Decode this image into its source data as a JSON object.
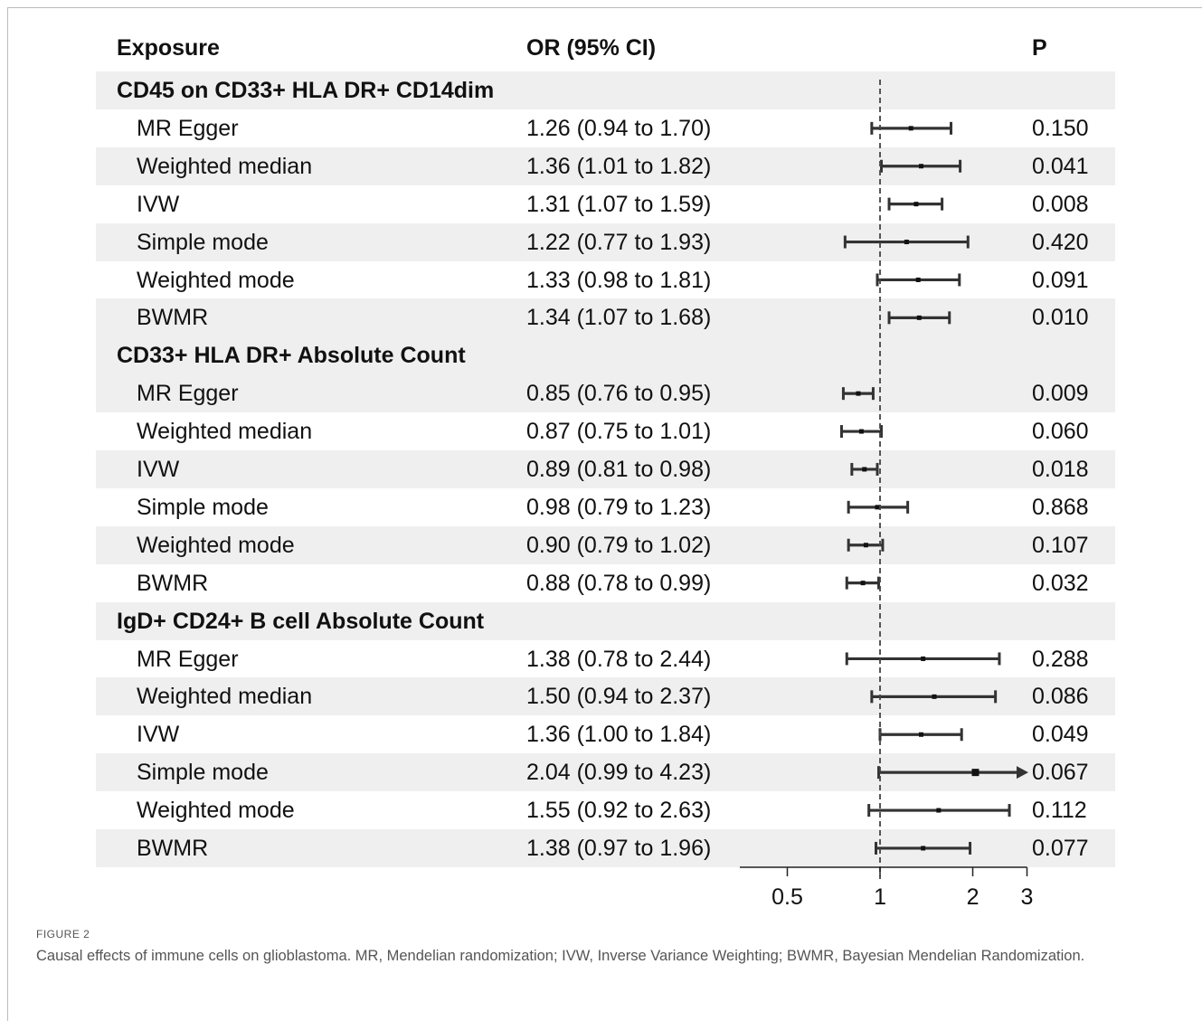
{
  "chart_data": {
    "type": "forest",
    "columns": {
      "exposure": "Exposure",
      "or": "OR (95% CI)",
      "p": "P"
    },
    "x_ticks": [
      "0.5",
      "1",
      "2",
      "3"
    ],
    "x_scale": "log",
    "x_range": [
      0.5,
      3
    ],
    "reference_line": 1,
    "groups": [
      {
        "name": "CD45 on CD33+ HLA DR+ CD14dim",
        "rows": [
          {
            "method": "MR Egger",
            "or_text": "1.26 (0.94 to 1.70)",
            "p": "0.150",
            "or": 1.26,
            "lo": 0.94,
            "hi": 1.7
          },
          {
            "method": "Weighted median",
            "or_text": "1.36 (1.01 to 1.82)",
            "p": "0.041",
            "or": 1.36,
            "lo": 1.01,
            "hi": 1.82
          },
          {
            "method": "IVW",
            "or_text": "1.31 (1.07 to 1.59)",
            "p": "0.008",
            "or": 1.31,
            "lo": 1.07,
            "hi": 1.59
          },
          {
            "method": "Simple mode",
            "or_text": "1.22 (0.77 to 1.93)",
            "p": "0.420",
            "or": 1.22,
            "lo": 0.77,
            "hi": 1.93
          },
          {
            "method": "Weighted mode",
            "or_text": "1.33 (0.98 to 1.81)",
            "p": "0.091",
            "or": 1.33,
            "lo": 0.98,
            "hi": 1.81
          },
          {
            "method": "BWMR",
            "or_text": "1.34 (1.07 to 1.68)",
            "p": "0.010",
            "or": 1.34,
            "lo": 1.07,
            "hi": 1.68
          }
        ]
      },
      {
        "name": "CD33+ HLA DR+ Absolute Count",
        "rows": [
          {
            "method": "MR Egger",
            "or_text": "0.85 (0.76 to 0.95)",
            "p": "0.009",
            "or": 0.85,
            "lo": 0.76,
            "hi": 0.95
          },
          {
            "method": "Weighted median",
            "or_text": "0.87 (0.75 to 1.01)",
            "p": "0.060",
            "or": 0.87,
            "lo": 0.75,
            "hi": 1.01
          },
          {
            "method": "IVW",
            "or_text": "0.89 (0.81 to 0.98)",
            "p": "0.018",
            "or": 0.89,
            "lo": 0.81,
            "hi": 0.98
          },
          {
            "method": "Simple mode",
            "or_text": "0.98 (0.79 to 1.23)",
            "p": "0.868",
            "or": 0.98,
            "lo": 0.79,
            "hi": 1.23
          },
          {
            "method": "Weighted mode",
            "or_text": "0.90 (0.79 to 1.02)",
            "p": "0.107",
            "or": 0.9,
            "lo": 0.79,
            "hi": 1.02
          },
          {
            "method": "BWMR",
            "or_text": "0.88 (0.78 to 0.99)",
            "p": "0.032",
            "or": 0.88,
            "lo": 0.78,
            "hi": 0.99
          }
        ]
      },
      {
        "name": "IgD+ CD24+ B cell Absolute Count",
        "rows": [
          {
            "method": "MR Egger",
            "or_text": "1.38 (0.78 to 2.44)",
            "p": "0.288",
            "or": 1.38,
            "lo": 0.78,
            "hi": 2.44
          },
          {
            "method": "Weighted median",
            "or_text": "1.50 (0.94 to 2.37)",
            "p": "0.086",
            "or": 1.5,
            "lo": 0.94,
            "hi": 2.37
          },
          {
            "method": "IVW",
            "or_text": "1.36 (1.00 to 1.84)",
            "p": "0.049",
            "or": 1.36,
            "lo": 1.0,
            "hi": 1.84
          },
          {
            "method": "Simple mode",
            "or_text": "2.04 (0.99 to 4.23)",
            "p": "0.067",
            "or": 2.04,
            "lo": 0.99,
            "hi": 4.23,
            "arrow": true
          },
          {
            "method": "Weighted mode",
            "or_text": "1.55 (0.92 to 2.63)",
            "p": "0.112",
            "or": 1.55,
            "lo": 0.92,
            "hi": 2.63
          },
          {
            "method": "BWMR",
            "or_text": "1.38 (0.97 to 1.96)",
            "p": "0.077",
            "or": 1.38,
            "lo": 0.97,
            "hi": 1.96
          }
        ]
      }
    ]
  },
  "figure": {
    "label": "FIGURE 2",
    "caption": "Causal effects of immune cells on glioblastoma. MR, Mendelian randomization; IVW, Inverse Variance Weighting; BWMR, Bayesian Mendelian Randomization."
  }
}
